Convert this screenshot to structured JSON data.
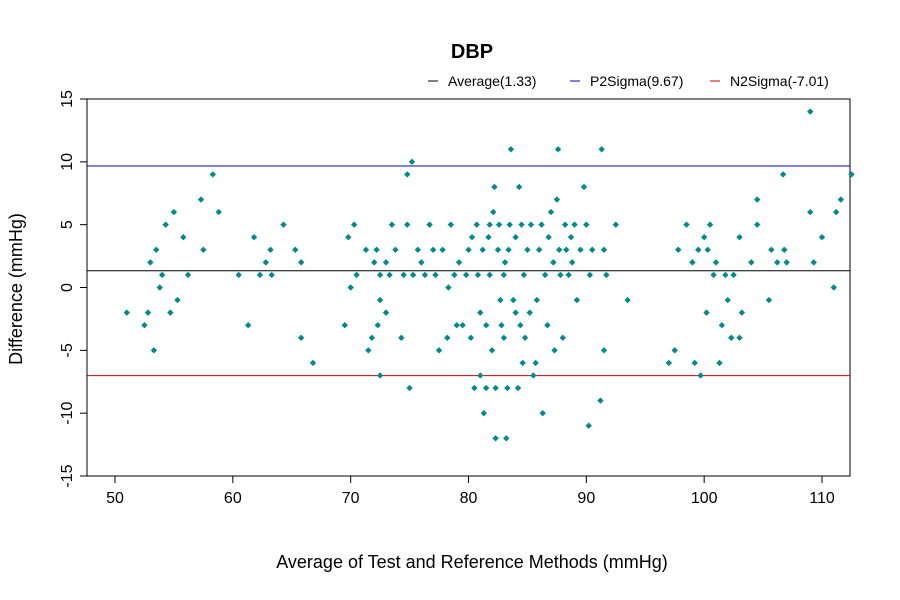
{
  "chart_data": {
    "type": "scatter",
    "title": "DBP",
    "xlabel": "Average of Test and Reference Methods (mmHg)",
    "ylabel": "Difference (mmHg)",
    "xlim": [
      50,
      115
    ],
    "ylim": [
      -15,
      15
    ],
    "x_ticks": [
      "50",
      "60",
      "70",
      "80",
      "90",
      "100",
      "110"
    ],
    "y_ticks": [
      "-15",
      "-10",
      "-5",
      "0",
      "5",
      "10",
      "15"
    ],
    "point_color": "#008B8B",
    "grid": false,
    "legend_position": "top",
    "reference_lines": [
      {
        "name": "Average(1.33)",
        "value": 1.33,
        "color": "#000000"
      },
      {
        "name": "P2Sigma(9.67)",
        "value": 9.67,
        "color": "#0000CC"
      },
      {
        "name": "N2Sigma(-7.01)",
        "value": -7.01,
        "color": "#CC0000"
      }
    ],
    "points": [
      [
        51,
        -2
      ],
      [
        52.5,
        -3
      ],
      [
        52.8,
        -2
      ],
      [
        53,
        2
      ],
      [
        53.3,
        -5
      ],
      [
        53.5,
        3
      ],
      [
        53.8,
        0
      ],
      [
        54,
        1
      ],
      [
        54.3,
        5
      ],
      [
        54.7,
        -2
      ],
      [
        55,
        6
      ],
      [
        55.3,
        -1
      ],
      [
        55.8,
        4
      ],
      [
        56.2,
        1
      ],
      [
        57.3,
        7
      ],
      [
        57.5,
        3
      ],
      [
        58.3,
        9
      ],
      [
        58.8,
        6
      ],
      [
        60.5,
        1
      ],
      [
        61.3,
        -3
      ],
      [
        61.8,
        4
      ],
      [
        62.3,
        1
      ],
      [
        62.8,
        2
      ],
      [
        63.2,
        3
      ],
      [
        63.3,
        1
      ],
      [
        64.3,
        5
      ],
      [
        65.3,
        3
      ],
      [
        65.8,
        -4
      ],
      [
        65.8,
        2
      ],
      [
        66.8,
        -6
      ],
      [
        69.5,
        -3
      ],
      [
        69.8,
        4
      ],
      [
        70,
        0
      ],
      [
        70.3,
        5
      ],
      [
        70.5,
        1
      ],
      [
        71.3,
        3
      ],
      [
        71.5,
        -5
      ],
      [
        71.8,
        -4
      ],
      [
        72,
        2
      ],
      [
        72.2,
        3
      ],
      [
        72.3,
        -3
      ],
      [
        72.5,
        -1
      ],
      [
        72.5,
        1
      ],
      [
        72.5,
        -7
      ],
      [
        73,
        2
      ],
      [
        73,
        -2
      ],
      [
        73.3,
        1
      ],
      [
        73.5,
        5
      ],
      [
        73.8,
        3
      ],
      [
        74.3,
        -4
      ],
      [
        74.5,
        1
      ],
      [
        74.8,
        5
      ],
      [
        74.8,
        9
      ],
      [
        75,
        -8
      ],
      [
        75.2,
        10
      ],
      [
        75.3,
        1
      ],
      [
        75.7,
        3
      ],
      [
        76,
        2
      ],
      [
        76.3,
        1
      ],
      [
        76.7,
        5
      ],
      [
        77,
        3
      ],
      [
        77.2,
        1
      ],
      [
        77.5,
        -5
      ],
      [
        77.8,
        3
      ],
      [
        78.2,
        -4
      ],
      [
        78.3,
        0
      ],
      [
        78.5,
        5
      ],
      [
        78.8,
        1
      ],
      [
        79,
        -3
      ],
      [
        79.2,
        2
      ],
      [
        79.5,
        -3
      ],
      [
        79.8,
        1
      ],
      [
        80,
        3
      ],
      [
        80.2,
        -4
      ],
      [
        80.3,
        4
      ],
      [
        80.5,
        -8
      ],
      [
        80.7,
        5
      ],
      [
        80.8,
        1
      ],
      [
        81,
        -7
      ],
      [
        81,
        -2
      ],
      [
        81.2,
        3
      ],
      [
        81.3,
        -10
      ],
      [
        81.5,
        -8
      ],
      [
        81.5,
        -3
      ],
      [
        81.7,
        4
      ],
      [
        81.8,
        5
      ],
      [
        81.8,
        1
      ],
      [
        82,
        -5
      ],
      [
        82.1,
        6
      ],
      [
        82.2,
        8
      ],
      [
        82.3,
        -12
      ],
      [
        82.3,
        -8
      ],
      [
        82.5,
        3
      ],
      [
        82.6,
        5
      ],
      [
        82.7,
        -1
      ],
      [
        82.8,
        -3
      ],
      [
        83,
        1
      ],
      [
        83,
        -4
      ],
      [
        83.1,
        2
      ],
      [
        83.2,
        -12
      ],
      [
        83.3,
        -8
      ],
      [
        83.4,
        3
      ],
      [
        83.5,
        5
      ],
      [
        83.6,
        11
      ],
      [
        83.8,
        -1
      ],
      [
        84,
        4
      ],
      [
        84,
        -2
      ],
      [
        84.2,
        -8
      ],
      [
        84.3,
        8
      ],
      [
        84.4,
        -3
      ],
      [
        84.5,
        5
      ],
      [
        84.6,
        -6
      ],
      [
        84.7,
        1
      ],
      [
        84.8,
        -4
      ],
      [
        85,
        3
      ],
      [
        85.2,
        -2
      ],
      [
        85.3,
        5
      ],
      [
        85.5,
        -7
      ],
      [
        85.7,
        -6
      ],
      [
        85.8,
        -1
      ],
      [
        86,
        3
      ],
      [
        86.2,
        5
      ],
      [
        86.3,
        -10
      ],
      [
        86.5,
        1
      ],
      [
        86.7,
        -3
      ],
      [
        86.8,
        4
      ],
      [
        87,
        6
      ],
      [
        87.2,
        2
      ],
      [
        87.3,
        -5
      ],
      [
        87.5,
        7
      ],
      [
        87.6,
        11
      ],
      [
        87.7,
        3
      ],
      [
        87.8,
        1
      ],
      [
        88,
        -4
      ],
      [
        88.2,
        5
      ],
      [
        88.3,
        3
      ],
      [
        88.5,
        1
      ],
      [
        88.7,
        4
      ],
      [
        88.8,
        2
      ],
      [
        89,
        5
      ],
      [
        89.2,
        -1
      ],
      [
        89.5,
        3
      ],
      [
        89.8,
        8
      ],
      [
        90,
        5
      ],
      [
        90.2,
        -11
      ],
      [
        90.3,
        1
      ],
      [
        90.5,
        3
      ],
      [
        91.2,
        -9
      ],
      [
        91.3,
        11
      ],
      [
        91.5,
        3
      ],
      [
        91.5,
        -5
      ],
      [
        91.7,
        1
      ],
      [
        92.5,
        5
      ],
      [
        93.5,
        -1
      ],
      [
        97,
        -6
      ],
      [
        97.5,
        -5
      ],
      [
        97.8,
        3
      ],
      [
        98.5,
        5
      ],
      [
        99,
        2
      ],
      [
        99.2,
        -6
      ],
      [
        99.5,
        3
      ],
      [
        99.7,
        -7
      ],
      [
        100,
        4
      ],
      [
        100.2,
        -2
      ],
      [
        100.3,
        3
      ],
      [
        100.5,
        5
      ],
      [
        100.8,
        1
      ],
      [
        101,
        2
      ],
      [
        101.3,
        -6
      ],
      [
        101.5,
        -3
      ],
      [
        101.8,
        1
      ],
      [
        102,
        -1
      ],
      [
        102.3,
        -4
      ],
      [
        102.5,
        1
      ],
      [
        103,
        4
      ],
      [
        103,
        -4
      ],
      [
        103.2,
        -2
      ],
      [
        104,
        2
      ],
      [
        104.5,
        5
      ],
      [
        104.5,
        7
      ],
      [
        105.5,
        -1
      ],
      [
        105.7,
        3
      ],
      [
        106.2,
        2
      ],
      [
        106.7,
        9
      ],
      [
        106.8,
        3
      ],
      [
        107,
        2
      ],
      [
        109,
        14
      ],
      [
        109,
        6
      ],
      [
        109.3,
        2
      ],
      [
        110,
        4
      ],
      [
        111,
        0
      ],
      [
        111.2,
        6
      ],
      [
        111.6,
        7
      ],
      [
        112.5,
        9
      ]
    ]
  }
}
